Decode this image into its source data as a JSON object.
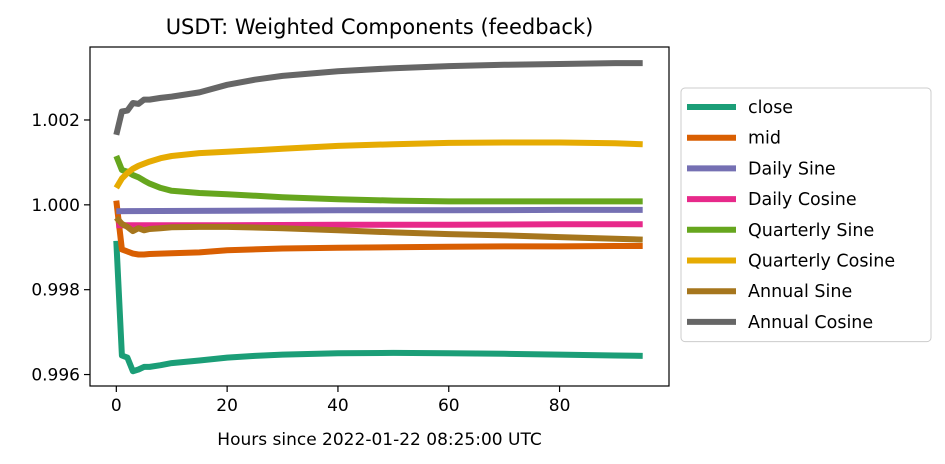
{
  "chart_data": {
    "type": "line",
    "title": "USDT: Weighted Components (feedback)",
    "xlabel": "Hours since 2022-01-22 08:25:00 UTC",
    "ylabel": "",
    "xlim": [
      -4.75,
      99.75
    ],
    "ylim": [
      0.99573,
      1.00372
    ],
    "xticks": [
      0,
      20,
      40,
      60,
      80
    ],
    "yticks": [
      0.996,
      0.998,
      1.0,
      1.002
    ],
    "ytick_labels": [
      "0.996",
      "0.998",
      "1.000",
      "1.002"
    ],
    "grid": false,
    "legend_position": "outside-right",
    "series": [
      {
        "name": "close",
        "color": "#1b9e77",
        "x": [
          0,
          1,
          2,
          3,
          4,
          5,
          6,
          8,
          10,
          15,
          20,
          25,
          30,
          40,
          50,
          60,
          70,
          80,
          90,
          95
        ],
        "y": [
          0.99915,
          0.99645,
          0.9964,
          0.99608,
          0.99612,
          0.99618,
          0.99618,
          0.99622,
          0.99627,
          0.99633,
          0.9964,
          0.99644,
          0.99647,
          0.9965,
          0.99651,
          0.9965,
          0.99649,
          0.99647,
          0.99645,
          0.99644
        ]
      },
      {
        "name": "mid",
        "color": "#d95f02",
        "x": [
          0,
          1,
          2,
          3,
          4,
          5,
          6,
          8,
          10,
          15,
          20,
          30,
          40,
          50,
          60,
          70,
          80,
          90,
          95
        ],
        "y": [
          1.0001,
          0.99895,
          0.9989,
          0.99885,
          0.99883,
          0.99883,
          0.99884,
          0.99885,
          0.99886,
          0.99888,
          0.99893,
          0.99897,
          0.99899,
          0.999,
          0.99901,
          0.99902,
          0.99902,
          0.99903,
          0.99903
        ]
      },
      {
        "name": "Daily Sine",
        "color": "#7570b3",
        "x": [
          0,
          20,
          40,
          60,
          80,
          95
        ],
        "y": [
          0.99985,
          0.99986,
          0.99987,
          0.99987,
          0.99988,
          0.99988
        ]
      },
      {
        "name": "Daily Cosine",
        "color": "#e7298a",
        "x": [
          0,
          20,
          40,
          60,
          80,
          95
        ],
        "y": [
          0.99952,
          0.99952,
          0.99953,
          0.99953,
          0.99954,
          0.99954
        ]
      },
      {
        "name": "Quarterly Sine",
        "color": "#66a61e",
        "x": [
          0,
          1,
          2,
          3,
          4,
          5,
          6,
          8,
          10,
          15,
          20,
          30,
          40,
          50,
          60,
          70,
          80,
          90,
          95
        ],
        "y": [
          1.00115,
          1.00082,
          1.00078,
          1.0007,
          1.00065,
          1.00057,
          1.0005,
          1.0004,
          1.00033,
          1.00028,
          1.00025,
          1.00018,
          1.00013,
          1.0001,
          1.00008,
          1.00008,
          1.00008,
          1.00008,
          1.00008
        ]
      },
      {
        "name": "Quarterly Cosine",
        "color": "#e6ab02",
        "x": [
          0,
          1,
          2,
          3,
          4,
          5,
          6,
          8,
          10,
          15,
          20,
          30,
          40,
          50,
          60,
          70,
          80,
          90,
          95
        ],
        "y": [
          1.0004,
          1.00062,
          1.00075,
          1.00085,
          1.00092,
          1.00097,
          1.00102,
          1.0011,
          1.00115,
          1.00122,
          1.00125,
          1.00132,
          1.00139,
          1.00143,
          1.00146,
          1.00147,
          1.00147,
          1.00145,
          1.00143
        ]
      },
      {
        "name": "Annual Sine",
        "color": "#a6761d",
        "x": [
          0,
          1,
          2,
          3,
          4,
          5,
          6,
          8,
          10,
          15,
          20,
          30,
          40,
          50,
          60,
          70,
          80,
          90,
          95
        ],
        "y": [
          0.9997,
          0.99955,
          0.99948,
          0.99938,
          0.99945,
          0.9994,
          0.99943,
          0.99945,
          0.99947,
          0.99948,
          0.99948,
          0.99945,
          0.9994,
          0.99935,
          0.99931,
          0.99928,
          0.99924,
          0.9992,
          0.99918
        ]
      },
      {
        "name": "Annual Cosine",
        "color": "#666666",
        "x": [
          0,
          1,
          2,
          3,
          4,
          5,
          6,
          8,
          10,
          15,
          20,
          25,
          30,
          40,
          50,
          60,
          70,
          80,
          90,
          95
        ],
        "y": [
          1.00165,
          1.0022,
          1.00222,
          1.0024,
          1.00238,
          1.00248,
          1.00248,
          1.00252,
          1.00255,
          1.00265,
          1.00283,
          1.00295,
          1.00304,
          1.00315,
          1.00322,
          1.00327,
          1.0033,
          1.00332,
          1.00334,
          1.00334
        ]
      }
    ]
  }
}
